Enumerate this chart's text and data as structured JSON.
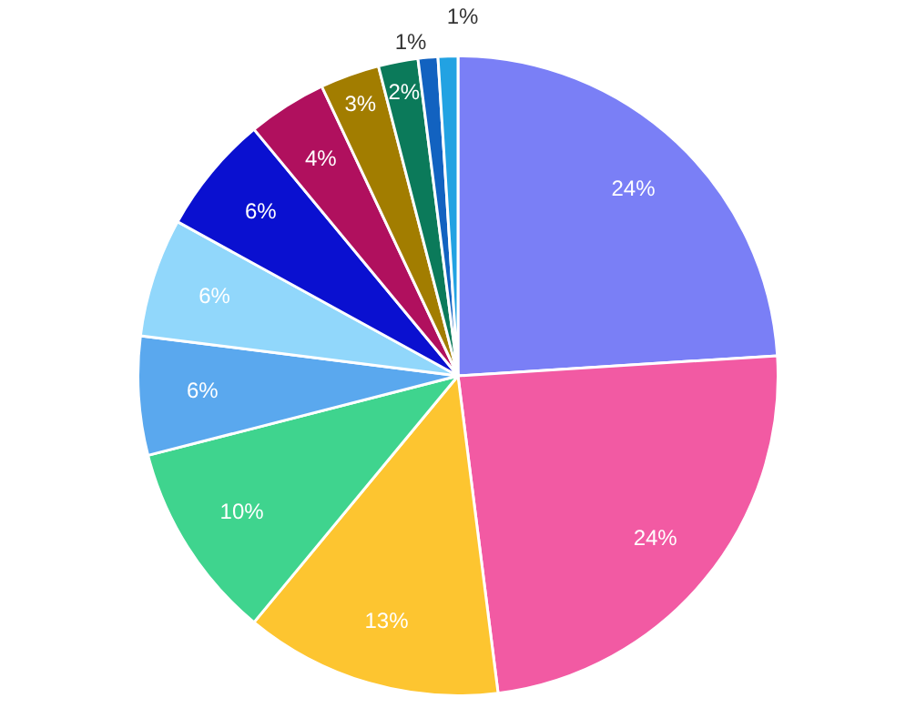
{
  "chart_data": {
    "type": "pie",
    "categories": [
      null,
      null,
      null,
      null,
      null,
      null,
      null,
      null,
      null,
      null,
      null,
      null
    ],
    "values": [
      24,
      24,
      13,
      10,
      6,
      6,
      6,
      4,
      3,
      2,
      1,
      1
    ],
    "value_labels": [
      "24%",
      "24%",
      "13%",
      "10%",
      "6%",
      "6%",
      "6%",
      "4%",
      "3%",
      "2%",
      "1%",
      "1%"
    ],
    "colors": [
      "#7a7ff6",
      "#f25aa3",
      "#fdc530",
      "#3fd48e",
      "#5aa8ee",
      "#91d7fb",
      "#0a10d0",
      "#b0105e",
      "#a27d00",
      "#0b7a5a",
      "#1262c0",
      "#22a2e2"
    ],
    "legend": false
  }
}
